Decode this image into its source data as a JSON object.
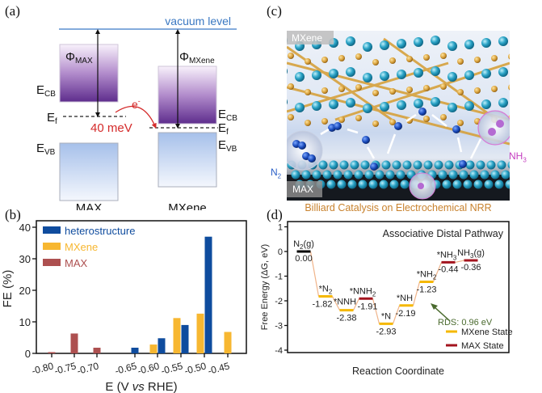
{
  "panel_labels": {
    "a": "(a)",
    "b": "(b)",
    "c": "(c)",
    "d": "(d)"
  },
  "panel_a": {
    "vacuum_level": "vacuum level",
    "phi_max": {
      "symbol": "Φ",
      "sub": "MAX"
    },
    "phi_mxene": {
      "symbol": "Φ",
      "sub": "MXene"
    },
    "e_cb": {
      "symbol": "E",
      "sub": "CB"
    },
    "e_f": {
      "symbol": "E",
      "sub": "f"
    },
    "e_vb": {
      "symbol": "E",
      "sub": "VB"
    },
    "electron": {
      "symbol": "e",
      "sup": "-"
    },
    "offset": "40 meV",
    "materials": [
      "MAX",
      "MXene"
    ],
    "colors": {
      "vacuum": "#5b8fd0",
      "arrow": "#d42a2a",
      "cb_top": "#f6eefa",
      "cb_bottom": "#6a3a97",
      "vb_top": "#a9c2ea",
      "vb_bottom": "#f2f6fd"
    }
  },
  "panel_c": {
    "top_label": "MXene",
    "bottom_label": "MAX",
    "n2": {
      "text": "N",
      "sub": "2"
    },
    "nh3": {
      "text": "NH",
      "sub": "3"
    },
    "title": "Billiard Catalysis on Electrochemical NRR"
  },
  "chart_data": [
    {
      "type": "bar",
      "panel": "b",
      "title": "",
      "xlabel": "E (V vs RHE)",
      "xlabel_parts": {
        "pre": "E (V ",
        "italic": "vs",
        "post": " RHE)"
      },
      "ylabel": "FE (%)",
      "ylim": [
        0,
        40
      ],
      "yticks": [
        "0",
        "10",
        "20",
        "30",
        "40"
      ],
      "categories": [
        "-0.80",
        "-0.75",
        "-0.70",
        "-0.65",
        "-0.60",
        "-0.55",
        "-0.50",
        "-0.45"
      ],
      "legend_position": "top-left",
      "series": [
        {
          "name": "heterostructure",
          "color": "#0f4c9e",
          "values": [
            null,
            null,
            null,
            1.8,
            4.8,
            9.0,
            37.0,
            null
          ]
        },
        {
          "name": "MXene",
          "color": "#f7b731",
          "values": [
            null,
            null,
            null,
            null,
            2.8,
            11.2,
            12.6,
            6.8
          ]
        },
        {
          "name": "MAX",
          "color": "#ad5050",
          "values": [
            0.4,
            6.3,
            1.8,
            null,
            null,
            null,
            null,
            null
          ]
        }
      ]
    },
    {
      "type": "line",
      "panel": "d",
      "title": "Associative Distal Pathway",
      "xlabel": "Reaction Coordinate",
      "ylabel": "Free Energy (ΔG, eV)",
      "ylim": [
        -4,
        1
      ],
      "yticks": [
        "1",
        "0",
        "-1",
        "-2",
        "-3",
        "-4"
      ],
      "annotation": "RDS: 0.96 eV",
      "legend_position": "bottom-right",
      "legend": [
        {
          "name": "MXene State",
          "color": "#f5b800"
        },
        {
          "name": "MAX State",
          "color": "#a3141e"
        }
      ],
      "steps": [
        {
          "label": "N",
          "sub": "2",
          "post": "(g)",
          "value": -0.0,
          "value_text": "0.00",
          "state": "gas"
        },
        {
          "label": "*N",
          "sub": "2",
          "post": "",
          "value": -1.82,
          "value_text": "-1.82",
          "state": "MXene"
        },
        {
          "label": "*NNH",
          "sub": "",
          "post": "",
          "value": -2.38,
          "value_text": "-2.38",
          "state": "MXene"
        },
        {
          "label": "*NNH",
          "sub": "2",
          "post": "",
          "value": -1.91,
          "value_text": "-1.91",
          "state": "MAX"
        },
        {
          "label": "*N",
          "sub": "",
          "post": "",
          "value": -2.93,
          "value_text": "-2.93",
          "state": "MXene"
        },
        {
          "label": "*NH",
          "sub": "",
          "post": "",
          "value": -2.19,
          "value_text": "-2.19",
          "state": "MXene"
        },
        {
          "label": "*NH",
          "sub": "2",
          "post": "",
          "value": -1.23,
          "value_text": "-1.23",
          "state": "MXene"
        },
        {
          "label": "*NH",
          "sub": "3",
          "post": "",
          "value": -0.44,
          "value_text": "-0.44",
          "state": "MAX"
        },
        {
          "label": "NH",
          "sub": "3",
          "post": "(g)",
          "value": -0.36,
          "value_text": "-0.36",
          "state": "MAX"
        }
      ],
      "colors": {
        "gas": "#000000",
        "connector": "#f0b48a",
        "annotation": "#4a6a2e"
      }
    }
  ]
}
